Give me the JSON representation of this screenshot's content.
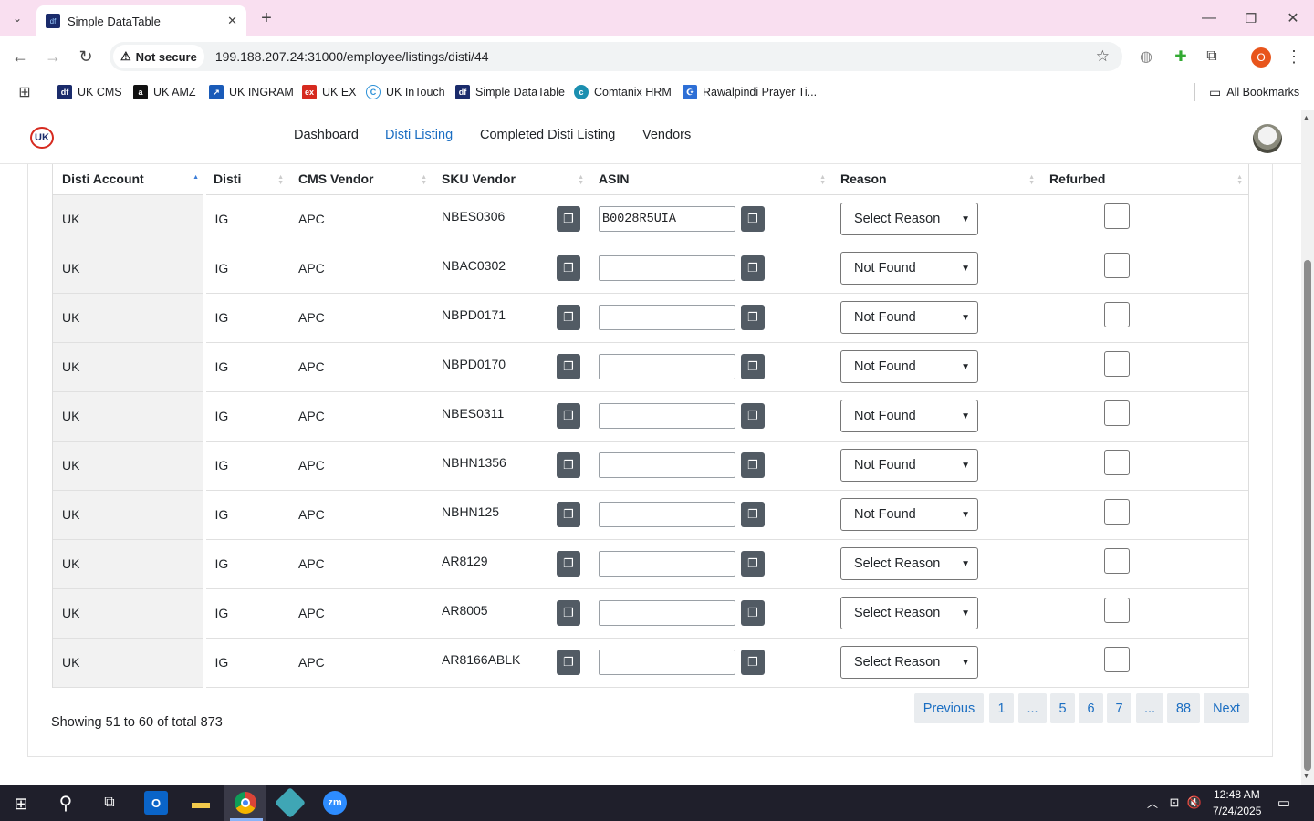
{
  "browser": {
    "tab_title": "Simple DataTable",
    "security_label": "Not secure",
    "url": "199.188.207.24:31000/employee/listings/disti/44",
    "profile_initial": "O",
    "bookmarks": [
      "UK CMS",
      "UK AMZ",
      "UK INGRAM",
      "UK EX",
      "UK InTouch",
      "Simple DataTable",
      "Comtanix HRM",
      "Rawalpindi Prayer Ti..."
    ],
    "all_bookmarks": "All Bookmarks"
  },
  "nav": {
    "logo": "UK",
    "links": [
      "Dashboard",
      "Disti Listing",
      "Completed Disti Listing",
      "Vendors"
    ],
    "active": "Disti Listing"
  },
  "table": {
    "headers": [
      "Disti Account",
      "Disti",
      "CMS Vendor",
      "SKU Vendor",
      "ASIN",
      "Reason",
      "Refurbed"
    ],
    "rows": [
      {
        "account": "UK",
        "disti": "IG",
        "vendor": "APC",
        "sku": "NBES0306",
        "asin": "B0028R5UIA",
        "reason": "Select Reason"
      },
      {
        "account": "UK",
        "disti": "IG",
        "vendor": "APC",
        "sku": "NBAC0302",
        "asin": "",
        "reason": "Not Found"
      },
      {
        "account": "UK",
        "disti": "IG",
        "vendor": "APC",
        "sku": "NBPD0171",
        "asin": "",
        "reason": "Not Found"
      },
      {
        "account": "UK",
        "disti": "IG",
        "vendor": "APC",
        "sku": "NBPD0170",
        "asin": "",
        "reason": "Not Found"
      },
      {
        "account": "UK",
        "disti": "IG",
        "vendor": "APC",
        "sku": "NBES0311",
        "asin": "",
        "reason": "Not Found"
      },
      {
        "account": "UK",
        "disti": "IG",
        "vendor": "APC",
        "sku": "NBHN1356",
        "asin": "",
        "reason": "Not Found"
      },
      {
        "account": "UK",
        "disti": "IG",
        "vendor": "APC",
        "sku": "NBHN125",
        "asin": "",
        "reason": "Not Found"
      },
      {
        "account": "UK",
        "disti": "IG",
        "vendor": "APC",
        "sku": "AR8129",
        "asin": "",
        "reason": "Select Reason"
      },
      {
        "account": "UK",
        "disti": "IG",
        "vendor": "APC",
        "sku": "AR8005",
        "asin": "",
        "reason": "Select Reason"
      },
      {
        "account": "UK",
        "disti": "IG",
        "vendor": "APC",
        "sku": "AR8166ABLK",
        "asin": "",
        "reason": "Select Reason"
      }
    ]
  },
  "footer": {
    "info": "Showing 51 to 60 of total 873",
    "pagination": [
      "Previous",
      "1",
      "...",
      "5",
      "6",
      "7",
      "...",
      "88",
      "Next"
    ]
  },
  "taskbar": {
    "time": "12:48 AM",
    "date": "7/24/2025"
  },
  "colors": {
    "accent": "#1b6ec2",
    "tabbar": "#f9dff0",
    "copy_button": "#525b64"
  }
}
